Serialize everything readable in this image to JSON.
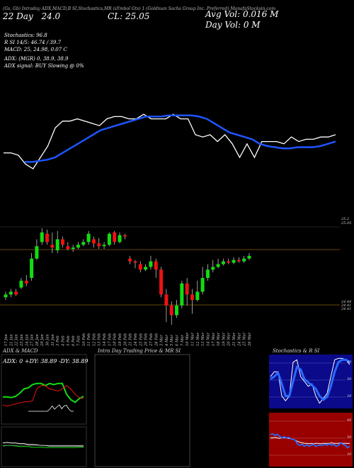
{
  "header": {
    "line1": "(Gs, Gb) Intraday ADX,MACD,B    SI,Stochastics,MR    (sYmbol Gts)     1     (Goldman Sachs Group Inc. Preferred) ManafaStocksin.com",
    "date": "22 Day",
    "prev": "24.0",
    "cl_label": "CL: 25.05",
    "avg_vol": "Avg Vol: 0.016  M",
    "day_vol": "Day Vol: 0   M",
    "stoch": "Stochastics: 96.8",
    "si": "R         SI 14/5: 46.74  / 39.7",
    "macd": "MACD: 25,  24.98,  0.07 C",
    "adx": "ADX:                         (MGR) 0, 38.9,  38.9",
    "adx_signal": "ADX  signal:                                BUY Slowing @ 0%"
  },
  "price_axis": {
    "top_labels": [
      "25.2",
      "25.05"
    ],
    "bottom_labels": [
      "24.44",
      "24.41",
      "24.41"
    ]
  },
  "dates": [
    "17 Jan",
    "21 Jan",
    "22 Jan",
    "23 Jan",
    "24 Jan",
    "27 Jan",
    "28 Jan",
    "29 Jan",
    "30 Jan",
    "31 Jan",
    "3 Feb",
    "4 Feb",
    "5 Feb",
    "6 Feb",
    "7 Feb",
    "10 Feb",
    "11 Feb",
    "12 Feb",
    "13 Feb",
    "14 Feb",
    "17 Feb",
    "18 Feb",
    "19 Feb",
    "20 Feb",
    "21 Feb",
    "24 Feb",
    "25 Feb",
    "26 Feb",
    "27 Feb",
    "28 Feb",
    "3 Mar",
    "4 Mar",
    "5 Mar",
    "6 Mar",
    "7 Mar",
    "10 Mar",
    "11 Mar",
    "12 Mar",
    "13 Mar",
    "14 Mar",
    "17 Mar",
    "18 Mar",
    "19 Mar",
    "20 Mar",
    "21 Mar",
    "24 Mar",
    "25 Mar",
    "26 Mar"
  ],
  "panels": {
    "adx_title": "ADX  & MACD",
    "adx_values": "ADX: 0   +DY: 38.89  -DY: 38.89",
    "intraday_title": "Intra  Day Trading Price  & MR               SI",
    "stoch_title": "Stochastics & R                SI",
    "stoch_axis": [
      "80",
      "50",
      "20"
    ],
    "rsi_axis": [
      "80",
      "50",
      "20"
    ]
  },
  "colors": {
    "up": "#11dd11",
    "down": "#ee1111",
    "ema": "#1e55ff",
    "stoch_bg": "#0a0a8a",
    "rsi_bg": "#990000"
  },
  "chart_data": [
    {
      "type": "line",
      "name": "price-ema-panel",
      "series": [
        {
          "values": [
            0.34,
            0.34,
            0.32,
            0.24,
            0.2,
            0.3,
            0.4,
            0.56,
            0.62,
            0.62,
            0.64,
            0.62,
            0.6,
            0.58,
            0.64,
            0.66,
            0.66,
            0.64,
            0.64,
            0.68,
            0.64,
            0.64,
            0.64,
            0.68,
            0.64,
            0.64,
            0.5,
            0.48,
            0.5,
            0.44,
            0.5,
            0.42,
            0.3,
            0.42,
            0.3,
            0.44,
            0.44,
            0.44,
            0.42,
            0.48,
            0.44,
            0.46,
            0.46,
            0.48,
            0.48,
            0.5
          ]
        },
        {
          "values": [
            0.26,
            0.26,
            0.27,
            0.28,
            0.3,
            0.34,
            0.38,
            0.42,
            0.46,
            0.5,
            0.54,
            0.56,
            0.58,
            0.6,
            0.62,
            0.64,
            0.66,
            0.66,
            0.66,
            0.67,
            0.67,
            0.67,
            0.67,
            0.66,
            0.64,
            0.6,
            0.56,
            0.52,
            0.5,
            0.48,
            0.46,
            0.42,
            0.4,
            0.39,
            0.38,
            0.38,
            0.39,
            0.39,
            0.39,
            0.4,
            0.42,
            0.44
          ]
        }
      ]
    },
    {
      "type": "candlestick",
      "name": "daily-candles",
      "series": [
        {
          "name": "candles",
          "values": [
            [
              24.58,
              24.6,
              24.62,
              24.56
            ],
            [
              24.6,
              24.62,
              24.64,
              24.58
            ],
            [
              24.62,
              24.6,
              24.64,
              24.59
            ],
            [
              24.65,
              24.7,
              24.72,
              24.64
            ],
            [
              24.7,
              24.68,
              24.74,
              24.66
            ],
            [
              24.72,
              24.86,
              24.9,
              24.7
            ],
            [
              24.86,
              24.95,
              25.0,
              24.85
            ],
            [
              24.98,
              25.05,
              25.08,
              24.96
            ],
            [
              25.04,
              24.98,
              25.07,
              24.96
            ],
            [
              24.96,
              24.94,
              25.05,
              24.9
            ],
            [
              24.92,
              25.0,
              25.06,
              24.9
            ],
            [
              25.0,
              24.96,
              25.02,
              24.94
            ],
            [
              24.95,
              24.93,
              24.98,
              24.92
            ],
            [
              24.93,
              24.94,
              24.96,
              24.91
            ],
            [
              24.94,
              24.96,
              24.98,
              24.93
            ],
            [
              24.96,
              24.98,
              25.0,
              24.95
            ],
            [
              24.98,
              25.04,
              25.06,
              24.96
            ],
            [
              25.0,
              24.97,
              25.02,
              24.94
            ],
            [
              24.97,
              24.95,
              25.01,
              24.93
            ],
            [
              24.95,
              24.96,
              24.98,
              24.93
            ],
            [
              24.96,
              25.04,
              25.05,
              24.95
            ],
            [
              25.05,
              24.98,
              25.06,
              24.96
            ],
            [
              24.98,
              25.03,
              25.05,
              24.97
            ],
            [
              25.03,
              25.02,
              25.04,
              25.0
            ],
            [
              24.86,
              24.84,
              24.88,
              24.82
            ],
            [
              24.84,
              24.83,
              24.85,
              24.79
            ],
            [
              24.82,
              24.78,
              24.84,
              24.76
            ],
            [
              24.78,
              24.8,
              24.82,
              24.77
            ],
            [
              24.8,
              24.84,
              24.88,
              24.78
            ],
            [
              24.84,
              24.78,
              24.86,
              24.72
            ],
            [
              24.78,
              24.6,
              24.8,
              24.58
            ],
            [
              24.6,
              24.52,
              24.64,
              24.4
            ],
            [
              24.52,
              24.45,
              24.55,
              24.38
            ],
            [
              24.45,
              24.52,
              24.56,
              24.43
            ],
            [
              24.52,
              24.68,
              24.7,
              24.5
            ],
            [
              24.68,
              24.6,
              24.72,
              24.52
            ],
            [
              24.6,
              24.56,
              24.64,
              24.46
            ],
            [
              24.56,
              24.62,
              24.7,
              24.55
            ],
            [
              24.62,
              24.72,
              24.8,
              24.6
            ],
            [
              24.72,
              24.78,
              24.82,
              24.7
            ],
            [
              24.78,
              24.8,
              24.85,
              24.76
            ],
            [
              24.8,
              24.82,
              24.86,
              24.79
            ],
            [
              24.82,
              24.84,
              24.86,
              24.81
            ],
            [
              24.84,
              24.83,
              24.86,
              24.82
            ],
            [
              24.83,
              24.85,
              24.87,
              24.82
            ],
            [
              24.85,
              24.84,
              24.87,
              24.83
            ],
            [
              24.84,
              24.86,
              24.88,
              24.83
            ],
            [
              24.86,
              24.88,
              24.9,
              24.85
            ]
          ]
        }
      ]
    },
    {
      "type": "line",
      "name": "adx",
      "series": [
        {
          "name": "+DY",
          "values": [
            0.45,
            0.45,
            0.44,
            0.46,
            0.52,
            0.6,
            0.62,
            0.68,
            0.7,
            0.7,
            0.66,
            0.7,
            0.68,
            0.7,
            0.7,
            0.5,
            0.4,
            0.35,
            0.42,
            0.46
          ]
        },
        {
          "name": "-DY",
          "values": [
            0.3,
            0.28,
            0.3,
            0.32,
            0.34,
            0.36,
            0.36,
            0.38,
            0.6,
            0.66,
            0.66,
            0.6,
            0.58,
            0.56,
            0.6,
            0.66,
            0.6,
            0.5,
            0.44,
            0.42
          ]
        },
        {
          "name": "ADX",
          "values": [
            0,
            0,
            0,
            0,
            0,
            0,
            0,
            0,
            0,
            0.1,
            0.25,
            0.1,
            0.2,
            0.3,
            0.12,
            0.25,
            0.28,
            0.1,
            0,
            0
          ]
        }
      ]
    },
    {
      "type": "line",
      "name": "stochastics",
      "series": [
        {
          "name": "%K",
          "values": [
            0.6,
            0.7,
            0.7,
            0.2,
            0.1,
            0.2,
            0.9,
            0.95,
            0.6,
            0.5,
            0.4,
            0.45,
            0.2,
            0.05,
            0.15,
            0.25,
            0.6,
            0.95,
            0.98,
            0.98,
            0.95,
            0.85
          ]
        },
        {
          "name": "%D",
          "values": [
            0.55,
            0.6,
            0.68,
            0.45,
            0.2,
            0.2,
            0.5,
            0.8,
            0.75,
            0.55,
            0.48,
            0.42,
            0.35,
            0.2,
            0.12,
            0.18,
            0.4,
            0.7,
            0.9,
            0.95,
            0.95,
            0.9
          ]
        }
      ]
    },
    {
      "type": "line",
      "name": "rsi",
      "series": [
        {
          "name": "RSI",
          "values": [
            0.62,
            0.63,
            0.6,
            0.62,
            0.58,
            0.55,
            0.57,
            0.55,
            0.56,
            0.53,
            0.52,
            0.5,
            0.42,
            0.4,
            0.42,
            0.38,
            0.41,
            0.38,
            0.4,
            0.42,
            0.38,
            0.4,
            0.4,
            0.4,
            0.42,
            0.4,
            0.43,
            0.4,
            0.42,
            0.38,
            0.4,
            0.45,
            0.42,
            0.4,
            0.35,
            0.38
          ]
        },
        {
          "name": "MFI",
          "values": [
            0.55,
            0.55,
            0.56,
            0.55,
            0.54,
            0.55,
            0.55,
            0.55,
            0.54,
            0.53,
            0.52,
            0.5,
            0.48,
            0.46,
            0.45,
            0.44,
            0.44,
            0.43,
            0.44,
            0.43,
            0.44,
            0.44,
            0.43,
            0.44,
            0.44,
            0.44,
            0.44,
            0.45,
            0.44,
            0.44,
            0.44,
            0.45,
            0.44,
            0.44,
            0.44,
            0.44
          ]
        }
      ]
    }
  ]
}
